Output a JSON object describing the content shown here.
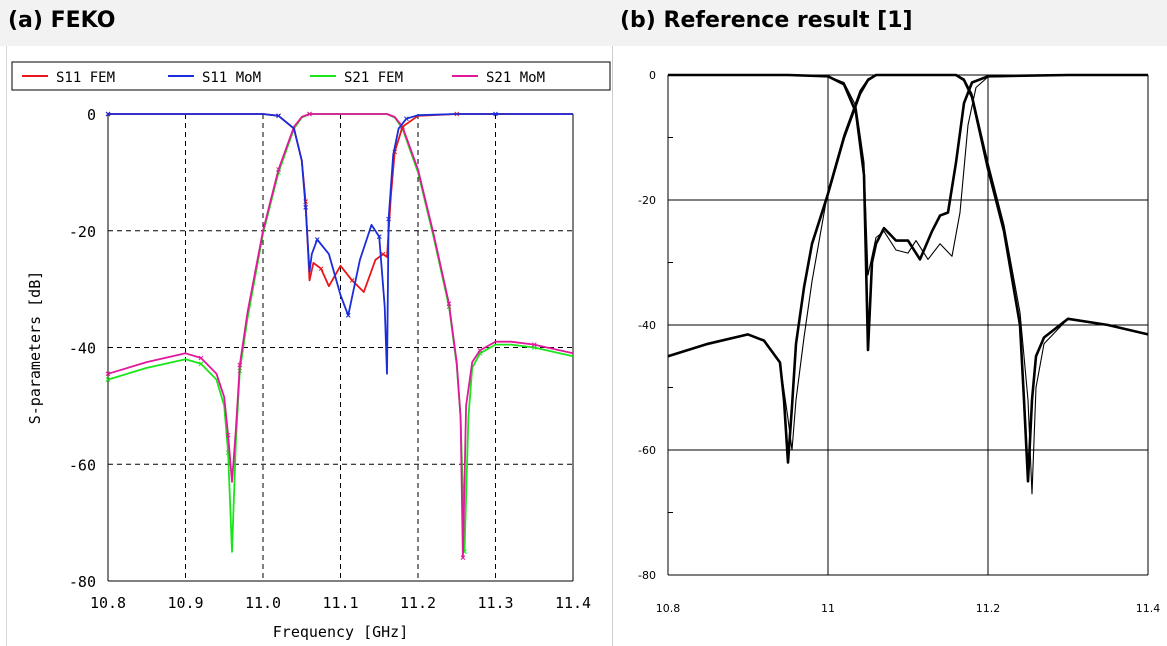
{
  "panels": {
    "a_title": "(a) FEKO",
    "b_title": "(b) Reference result [1]"
  },
  "chart_data": [
    {
      "type": "line",
      "title": "(a) FEKO",
      "xlabel": "Frequency [GHz]",
      "ylabel": "S-parameters [dB]",
      "xlim": [
        10.8,
        11.4
      ],
      "ylim": [
        -80,
        0
      ],
      "xticks": [
        "10.8",
        "10.9",
        "11.0",
        "11.1",
        "11.2",
        "11.3",
        "11.4"
      ],
      "yticks": [
        "0",
        "-20",
        "-40",
        "-60",
        "-80"
      ],
      "grid": true,
      "legend_position": "top",
      "series": [
        {
          "name": "S11 FEM",
          "color": "#e8161a",
          "x": [
            10.8,
            10.9,
            11.0,
            11.02,
            11.04,
            11.05,
            11.055,
            11.06,
            11.065,
            11.075,
            11.085,
            11.1,
            11.115,
            11.13,
            11.145,
            11.155,
            11.16,
            11.165,
            11.17,
            11.18,
            11.2,
            11.25,
            11.3,
            11.4
          ],
          "y": [
            0,
            0,
            0,
            -0.3,
            -2.5,
            -8,
            -15,
            -28.5,
            -25.5,
            -26.5,
            -29.5,
            -26,
            -28.5,
            -30.5,
            -25,
            -24,
            -24.5,
            -14,
            -6.5,
            -2.2,
            -0.3,
            0,
            0,
            0
          ]
        },
        {
          "name": "S11 MoM",
          "color": "#1a2ddb",
          "x": [
            10.8,
            10.9,
            11.0,
            11.02,
            11.04,
            11.05,
            11.055,
            11.06,
            11.063,
            11.07,
            11.085,
            11.1,
            11.11,
            11.125,
            11.14,
            11.15,
            11.157,
            11.16,
            11.162,
            11.168,
            11.175,
            11.185,
            11.2,
            11.25,
            11.3,
            11.4
          ],
          "y": [
            0,
            0,
            0,
            -0.3,
            -2.5,
            -8,
            -16,
            -27,
            -24,
            -21.5,
            -24,
            -31,
            -34.5,
            -25,
            -19,
            -21,
            -33,
            -44.5,
            -18,
            -7,
            -2.5,
            -0.8,
            -0.2,
            0,
            0,
            0
          ]
        },
        {
          "name": "S21 FEM",
          "color": "#19e619",
          "x": [
            10.8,
            10.85,
            10.9,
            10.92,
            10.94,
            10.95,
            10.955,
            10.96,
            10.965,
            10.97,
            10.98,
            11.0,
            11.02,
            11.04,
            11.05,
            11.06,
            11.16,
            11.17,
            11.18,
            11.2,
            11.22,
            11.24,
            11.25,
            11.255,
            11.26,
            11.265,
            11.27,
            11.28,
            11.3,
            11.32,
            11.35,
            11.4
          ],
          "y": [
            -45.5,
            -43.5,
            -42,
            -42.8,
            -45.5,
            -50,
            -58,
            -75,
            -56,
            -44,
            -35,
            -20.5,
            -10,
            -2.5,
            -0.6,
            0,
            0,
            -0.6,
            -2.5,
            -10,
            -21,
            -33,
            -43,
            -52,
            -75,
            -52,
            -43.5,
            -41,
            -39.5,
            -39.5,
            -40,
            -41.5
          ]
        },
        {
          "name": "S21 MoM",
          "color": "#e0189c",
          "x": [
            10.8,
            10.85,
            10.9,
            10.92,
            10.94,
            10.95,
            10.955,
            10.96,
            10.965,
            10.97,
            10.98,
            11.0,
            11.02,
            11.04,
            11.05,
            11.06,
            11.16,
            11.17,
            11.18,
            11.2,
            11.22,
            11.24,
            11.25,
            11.255,
            11.258,
            11.262,
            11.27,
            11.28,
            11.3,
            11.32,
            11.35,
            11.4
          ],
          "y": [
            -44.5,
            -42.5,
            -41,
            -41.8,
            -44.5,
            -48.5,
            -55,
            -63,
            -54,
            -43,
            -34,
            -20,
            -9.5,
            -2.2,
            -0.5,
            0,
            0,
            -0.5,
            -2.2,
            -9.5,
            -20.5,
            -32.5,
            -42.5,
            -52,
            -76,
            -50,
            -42.5,
            -40.5,
            -39,
            -39,
            -39.5,
            -41
          ]
        }
      ]
    },
    {
      "type": "line",
      "title": "(b) Reference result [1]",
      "xlim": [
        10.8,
        11.4
      ],
      "ylim": [
        -80,
        0
      ],
      "xticks": [
        "10.8",
        "11",
        "11.2",
        "11.4"
      ],
      "yticks": [
        "0",
        "-20",
        "-40",
        "-60",
        "-80"
      ],
      "grid": true,
      "series": [
        {
          "color": "#000000",
          "stroke": "thick",
          "x": [
            10.8,
            10.85,
            10.9,
            10.92,
            10.94,
            10.945,
            10.95,
            10.955,
            10.96,
            10.97,
            10.98,
            11.0,
            11.02,
            11.04,
            11.05,
            11.06,
            11.16,
            11.17,
            11.18,
            11.2,
            11.22,
            11.24,
            11.245,
            11.25,
            11.255,
            11.26,
            11.27,
            11.3,
            11.35,
            11.4
          ],
          "y": [
            -45,
            -43,
            -41.5,
            -42.5,
            -46,
            -52,
            -62,
            -53,
            -43,
            -34,
            -27,
            -19,
            -10,
            -3,
            -0.8,
            0,
            0,
            -0.8,
            -3.5,
            -15,
            -25,
            -40,
            -52,
            -65,
            -52,
            -45,
            -42,
            -39,
            -40,
            -41.5
          ]
        },
        {
          "color": "#000000",
          "stroke": "thin",
          "x": [
            10.8,
            10.85,
            10.9,
            10.92,
            10.94,
            10.95,
            10.955,
            10.96,
            10.97,
            10.98,
            11.0,
            11.02,
            11.04,
            11.05,
            11.06,
            11.16,
            11.17,
            11.18,
            11.2,
            11.22,
            11.24,
            11.25,
            11.255,
            11.26,
            11.27,
            11.3,
            11.35,
            11.4
          ],
          "y": [
            -45,
            -43,
            -41.5,
            -42.5,
            -46,
            -55,
            -60,
            -52,
            -42,
            -33,
            -18.5,
            -9.5,
            -2.5,
            -0.6,
            0,
            0,
            -0.6,
            -3,
            -14,
            -24,
            -38,
            -52,
            -67,
            -50,
            -43,
            -39,
            -40,
            -41.5
          ]
        },
        {
          "color": "#000000",
          "stroke": "thick",
          "x": [
            10.8,
            10.95,
            11.0,
            11.02,
            11.035,
            11.045,
            11.05,
            11.055,
            11.06,
            11.07,
            11.085,
            11.1,
            11.115,
            11.13,
            11.14,
            11.15,
            11.16,
            11.17,
            11.18,
            11.2,
            11.3,
            11.4
          ],
          "y": [
            0,
            0,
            -0.2,
            -1.5,
            -6,
            -16,
            -44,
            -30,
            -27,
            -24.5,
            -26.5,
            -26.5,
            -29.5,
            -25,
            -22.5,
            -22,
            -14,
            -4.5,
            -1.2,
            -0.2,
            0,
            0
          ]
        },
        {
          "color": "#000000",
          "stroke": "thin",
          "x": [
            10.8,
            10.95,
            11.0,
            11.02,
            11.035,
            11.045,
            11.05,
            11.055,
            11.06,
            11.07,
            11.085,
            11.1,
            11.11,
            11.125,
            11.14,
            11.155,
            11.165,
            11.175,
            11.185,
            11.2,
            11.3,
            11.4
          ],
          "y": [
            0,
            0,
            -0.2,
            -1.2,
            -5,
            -14,
            -32,
            -29,
            -26,
            -25,
            -28,
            -28.5,
            -26.5,
            -29.5,
            -27,
            -29,
            -22,
            -8,
            -2,
            -0.3,
            0,
            0
          ]
        }
      ]
    }
  ]
}
